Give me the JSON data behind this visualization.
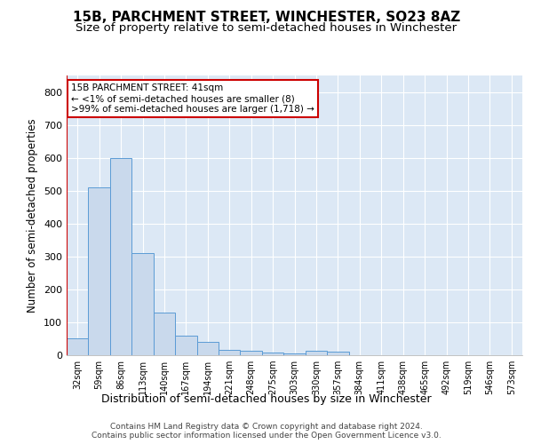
{
  "title1": "15B, PARCHMENT STREET, WINCHESTER, SO23 8AZ",
  "title2": "Size of property relative to semi-detached houses in Winchester",
  "xlabel": "Distribution of semi-detached houses by size in Winchester",
  "ylabel": "Number of semi-detached properties",
  "footnote": "Contains HM Land Registry data © Crown copyright and database right 2024.\nContains public sector information licensed under the Open Government Licence v3.0.",
  "categories": [
    "32sqm",
    "59sqm",
    "86sqm",
    "113sqm",
    "140sqm",
    "167sqm",
    "194sqm",
    "221sqm",
    "248sqm",
    "275sqm",
    "303sqm",
    "330sqm",
    "357sqm",
    "384sqm",
    "411sqm",
    "438sqm",
    "465sqm",
    "492sqm",
    "519sqm",
    "546sqm",
    "573sqm"
  ],
  "values": [
    50,
    510,
    600,
    310,
    130,
    60,
    40,
    15,
    13,
    8,
    5,
    13,
    10,
    0,
    0,
    0,
    0,
    0,
    0,
    0,
    0
  ],
  "bar_color": "#c9d9ec",
  "bar_edge_color": "#5b9bd5",
  "vline_color": "#cc0000",
  "annotation_text": "15B PARCHMENT STREET: 41sqm\n← <1% of semi-detached houses are smaller (8)\n>99% of semi-detached houses are larger (1,718) →",
  "annotation_box_color": "#ffffff",
  "annotation_box_edge": "#cc0000",
  "ylim": [
    0,
    850
  ],
  "yticks": [
    0,
    100,
    200,
    300,
    400,
    500,
    600,
    700,
    800
  ],
  "fig_bg_color": "#ffffff",
  "plot_bg_color": "#dce8f5",
  "title1_fontsize": 11,
  "title2_fontsize": 9.5,
  "grid_color": "#ffffff"
}
